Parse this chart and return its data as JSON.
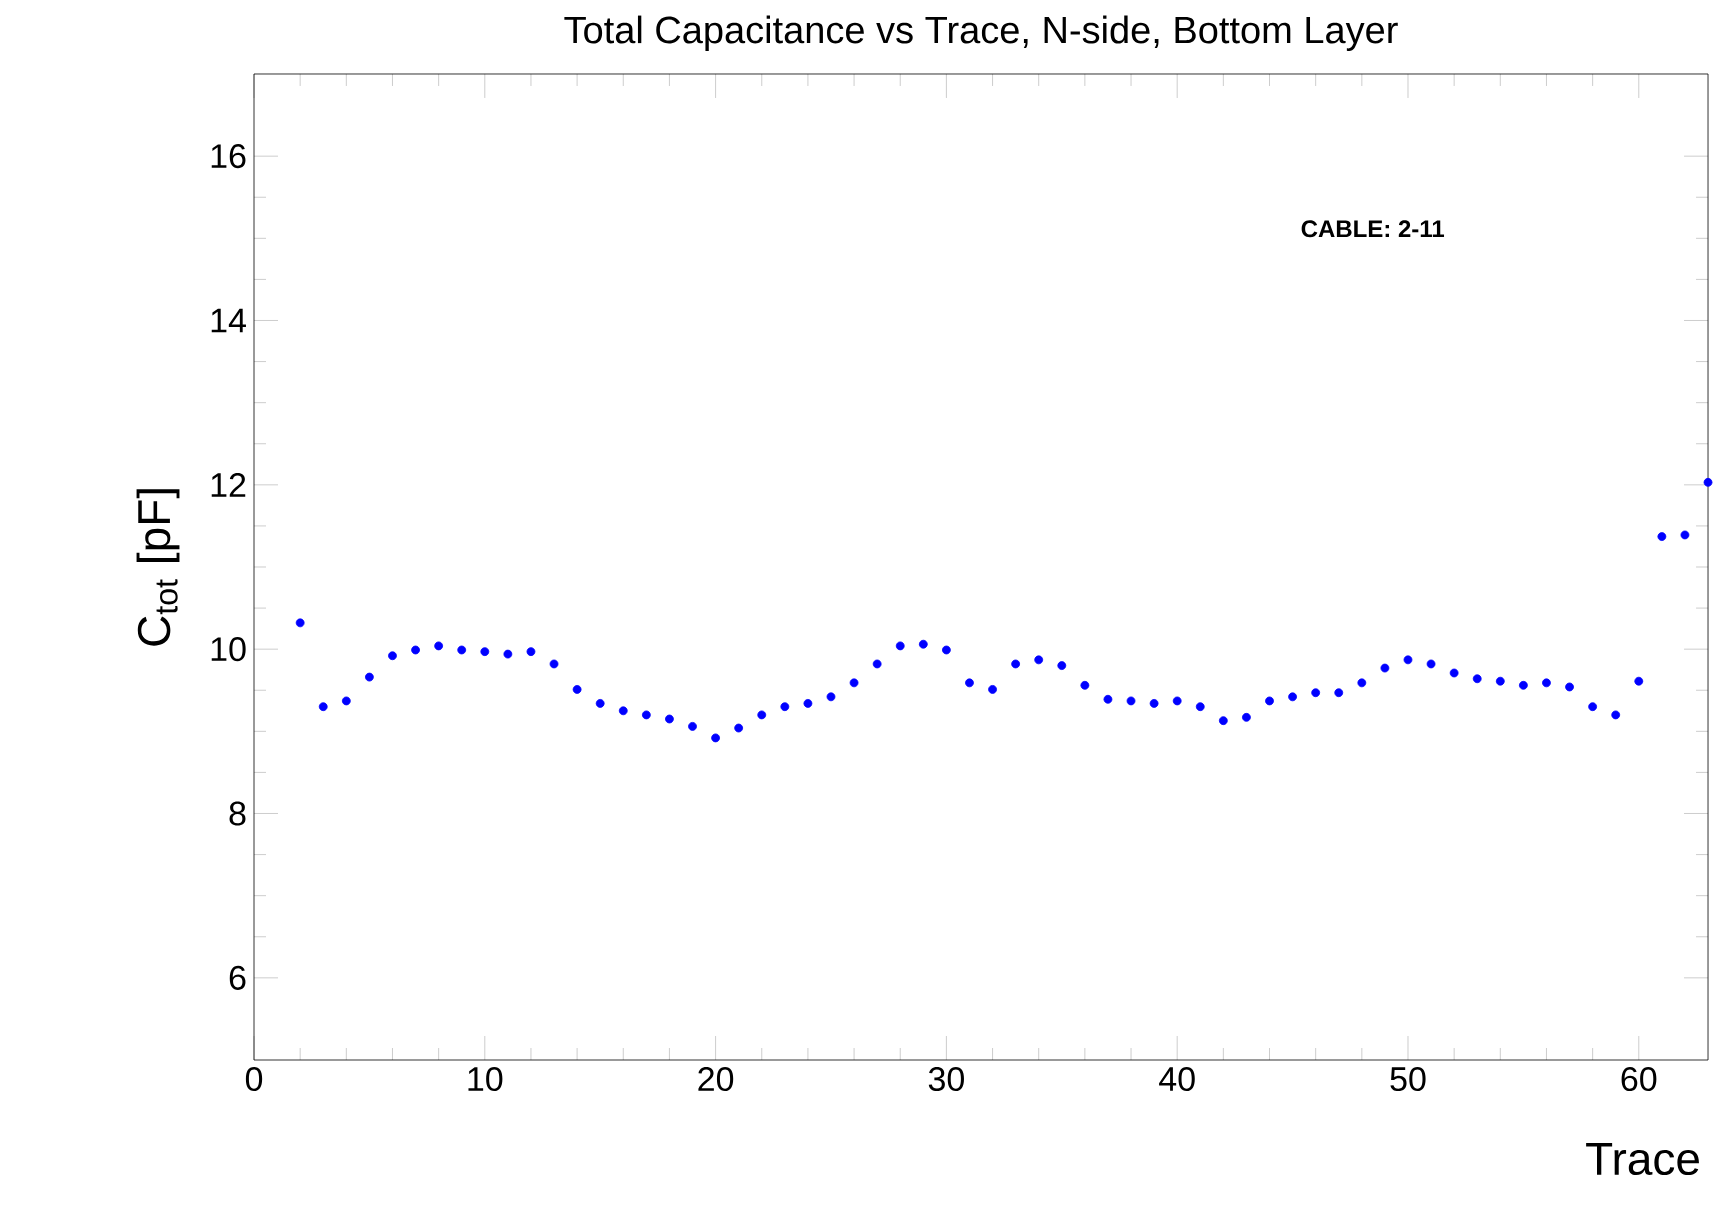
{
  "chart_data": {
    "type": "scatter",
    "title": "Total Capacitance vs Trace, N-side, Bottom Layer",
    "xlabel": "Trace",
    "ylabel": "C$_{tot}$ [pF]",
    "annotations": [
      "CABLE: 2-11"
    ],
    "color": "#0000ff",
    "marker": "circle",
    "xlim": [
      0,
      63
    ],
    "ylim": [
      5,
      17
    ],
    "xticks": [
      0,
      10,
      20,
      30,
      40,
      50,
      60
    ],
    "yticks": [
      6,
      8,
      10,
      12,
      14,
      16
    ],
    "x": [
      2,
      3,
      4,
      5,
      6,
      7,
      8,
      9,
      10,
      11,
      12,
      13,
      14,
      15,
      16,
      17,
      18,
      19,
      20,
      21,
      22,
      23,
      24,
      25,
      26,
      27,
      28,
      29,
      30,
      31,
      32,
      33,
      34,
      35,
      36,
      37,
      38,
      39,
      40,
      41,
      42,
      43,
      44,
      45,
      46,
      47,
      48,
      49,
      50,
      51,
      52,
      53,
      54,
      55,
      56,
      57,
      58,
      59,
      60,
      61,
      62,
      63
    ],
    "values": [
      10.32,
      9.3,
      9.37,
      9.66,
      9.92,
      9.99,
      10.04,
      9.99,
      9.97,
      9.94,
      9.97,
      9.82,
      9.51,
      9.34,
      9.25,
      9.2,
      9.15,
      9.06,
      8.92,
      9.04,
      9.2,
      9.3,
      9.34,
      9.42,
      9.59,
      9.82,
      10.04,
      10.06,
      9.99,
      9.59,
      9.51,
      9.82,
      9.87,
      9.8,
      9.56,
      9.39,
      9.37,
      9.34,
      9.37,
      9.3,
      9.13,
      9.17,
      9.37,
      9.42,
      9.47,
      9.47,
      9.59,
      9.77,
      9.87,
      9.82,
      9.71,
      9.64,
      9.61,
      9.56,
      9.59,
      9.54,
      9.3,
      9.2,
      9.61,
      11.37,
      11.39,
      12.03
    ]
  }
}
